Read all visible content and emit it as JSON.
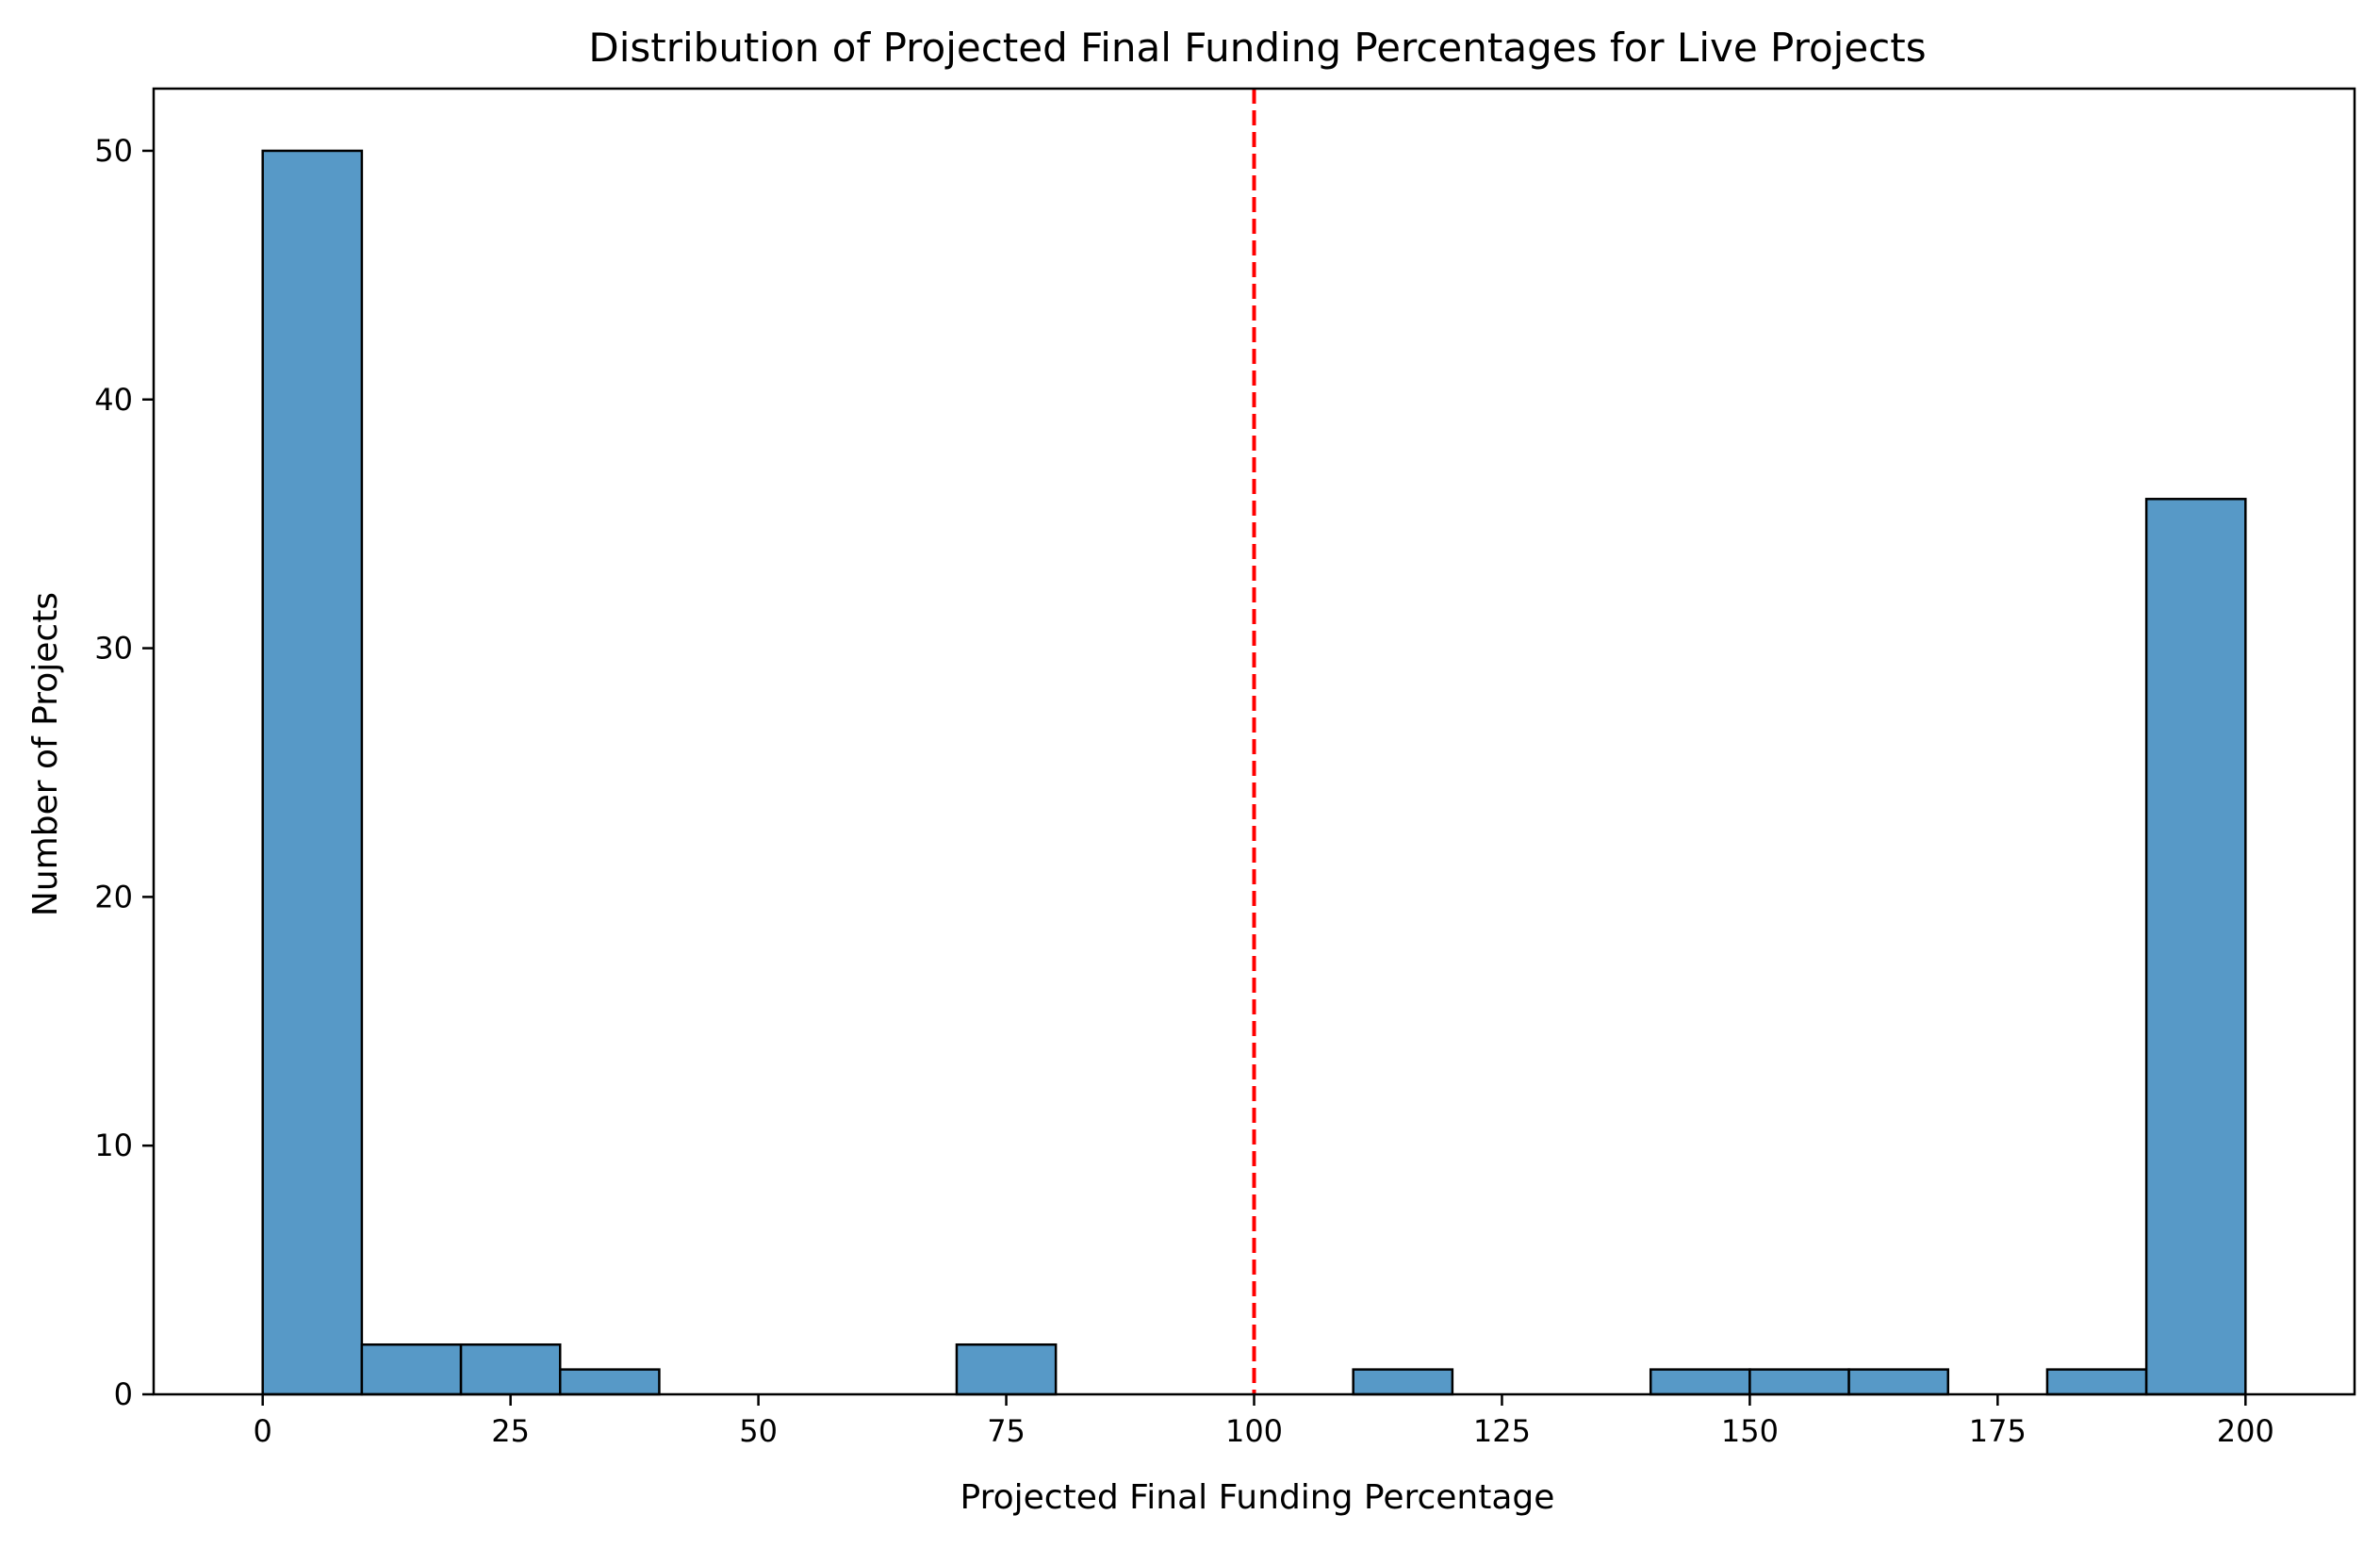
{
  "chart_data": {
    "type": "bar",
    "title": "Distribution of Projected Final Funding Percentages for Live Projects",
    "xlabel": "Projected Final Funding Percentage",
    "ylabel": "Number of Projects",
    "bin_edges": [
      0,
      10,
      20,
      30,
      40,
      50,
      60,
      70,
      80,
      90,
      100,
      110,
      120,
      130,
      140,
      150,
      160,
      170,
      180,
      190,
      200
    ],
    "counts": [
      50,
      2,
      2,
      1,
      0,
      0,
      0,
      2,
      0,
      0,
      0,
      1,
      0,
      0,
      1,
      1,
      1,
      0,
      1,
      36
    ],
    "xlim": [
      -11,
      211
    ],
    "ylim": [
      0,
      52.5
    ],
    "xticks": [
      0,
      25,
      50,
      75,
      100,
      125,
      150,
      175,
      200
    ],
    "yticks": [
      0,
      10,
      20,
      30,
      40,
      50
    ],
    "reference_line": {
      "x": 100,
      "color": "#ff0000",
      "style": "dashed"
    },
    "bar_color": "#5799c7",
    "edge_color": "#000000",
    "grid": false
  }
}
